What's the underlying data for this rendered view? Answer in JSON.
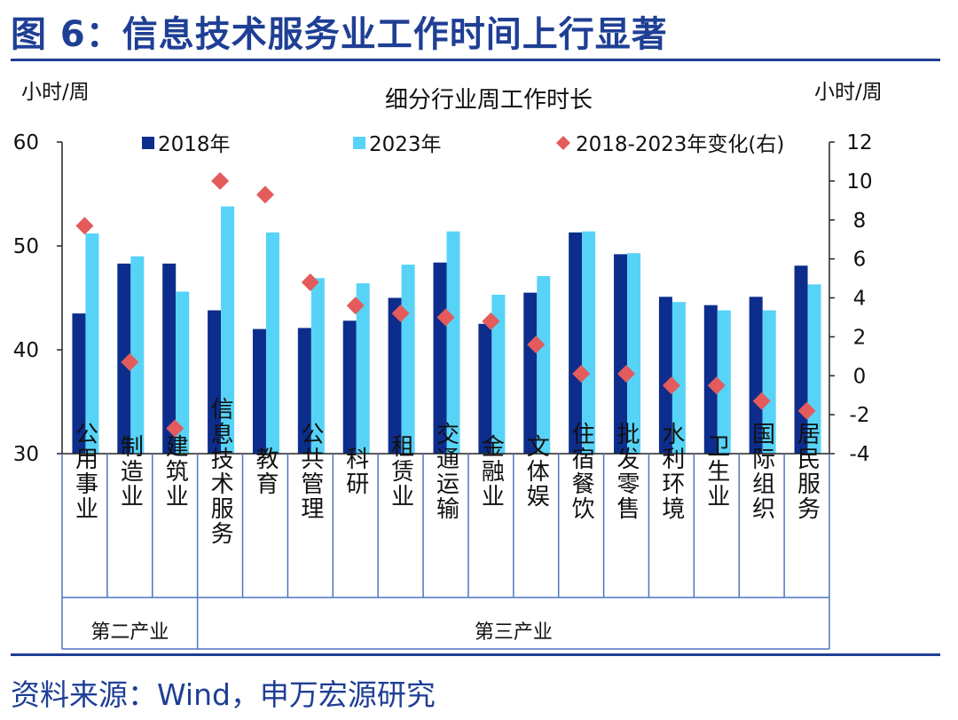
{
  "figure_title": "图 6：信息技术服务业工作时间上行显著",
  "source": "资料来源：Wind，申万宏源研究",
  "colors": {
    "title": "#1f3f95",
    "rule": "#1f3f95",
    "series_2018": "#0d2d8c",
    "series_2023": "#57d3f7",
    "series_change": "#e35b5b",
    "axis": "#222222",
    "group_border": "#4f74bf"
  },
  "chart_data": {
    "type": "bar",
    "title": "细分行业周工作时长",
    "y_left_label": "小时/周",
    "y_right_label": "小时/周",
    "y_left_range": [
      30,
      60
    ],
    "y_left_ticks": [
      "30",
      "40",
      "50",
      "60"
    ],
    "y_right_range": [
      -4,
      12
    ],
    "y_right_ticks": [
      "-4",
      "-2",
      "0",
      "2",
      "4",
      "6",
      "8",
      "10",
      "12"
    ],
    "grid": false,
    "legend_position": "top",
    "categories": [
      "公用事业",
      "制造业",
      "建筑业",
      "信息技术服务",
      "教育",
      "公共管理",
      "科研",
      "租赁业",
      "交通运输",
      "金融业",
      "文体娱",
      "住宿餐饮",
      "批发零售",
      "水利环境",
      "卫生业",
      "国际组织",
      "居民服务"
    ],
    "series": [
      {
        "name": "2018年",
        "type": "bar",
        "axis": "left",
        "values": [
          43.5,
          48.3,
          48.3,
          43.8,
          42.0,
          42.1,
          42.8,
          45.0,
          48.4,
          42.5,
          45.5,
          51.3,
          49.2,
          45.1,
          44.3,
          45.1,
          48.1
        ]
      },
      {
        "name": "2023年",
        "type": "bar",
        "axis": "left",
        "values": [
          51.2,
          49.0,
          45.6,
          53.8,
          51.3,
          46.9,
          46.4,
          48.2,
          51.4,
          45.3,
          47.1,
          51.4,
          49.3,
          44.6,
          43.8,
          43.8,
          46.3
        ]
      },
      {
        "name": "2018-2023年变化(右)",
        "type": "scatter",
        "marker": "diamond",
        "axis": "right",
        "values": [
          7.7,
          0.7,
          -2.7,
          10.0,
          9.3,
          4.8,
          3.6,
          3.2,
          3.0,
          2.8,
          1.6,
          0.1,
          0.1,
          -0.5,
          -0.5,
          -1.3,
          -1.8
        ]
      }
    ],
    "groups": [
      {
        "label": "第二产业",
        "count": 3
      },
      {
        "label": "第三产业",
        "count": 14
      }
    ]
  }
}
